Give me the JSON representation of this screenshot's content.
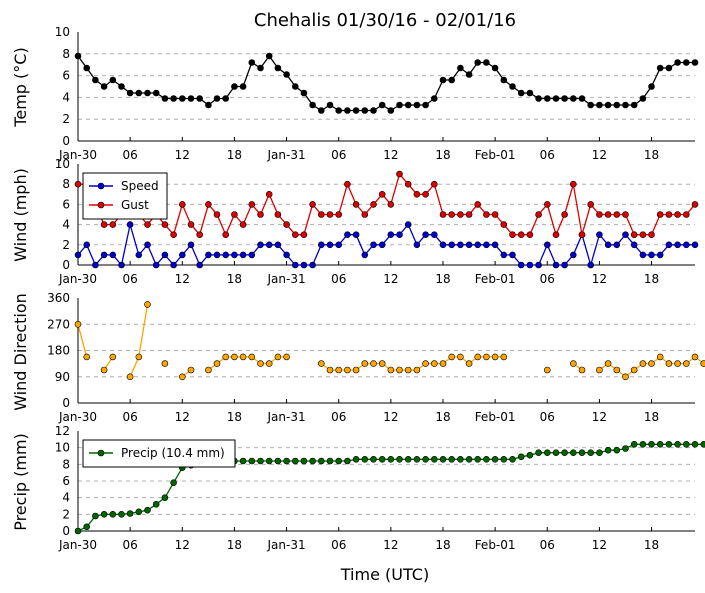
{
  "title": "Chehalis 01/30/16 - 02/01/16",
  "xlabel": "Time (UTC)",
  "x_tick_labels": [
    "Jan-30",
    "06",
    "12",
    "18",
    "Jan-31",
    "06",
    "12",
    "18",
    "Feb-01",
    "06",
    "12",
    "18"
  ],
  "chart_data": [
    {
      "type": "line",
      "ylabel": "Temp (°C)",
      "ylim": [
        0,
        10
      ],
      "yticks": [
        0,
        2,
        4,
        6,
        8,
        10
      ],
      "grid": true,
      "x_unit": "hours since 2016-01-30 00:00 UTC",
      "xlim": [
        0,
        71
      ],
      "series": [
        {
          "color": "#000000",
          "values": [
            7.8,
            6.7,
            5.6,
            5.0,
            5.6,
            5.0,
            4.4,
            4.4,
            4.4,
            4.4,
            3.9,
            3.9,
            3.9,
            3.9,
            3.9,
            3.3,
            3.9,
            3.9,
            5.0,
            5.0,
            7.2,
            6.7,
            7.8,
            6.7,
            6.1,
            5.0,
            4.4,
            3.3,
            2.8,
            3.3,
            2.8,
            2.8,
            2.8,
            2.8,
            2.8,
            3.3,
            2.8,
            3.3,
            3.3,
            3.3,
            3.3,
            3.9,
            5.6,
            5.6,
            6.7,
            6.1,
            7.2,
            7.2,
            6.7,
            5.6,
            5.0,
            4.4,
            4.4,
            3.9,
            3.9,
            3.9,
            3.9,
            3.9,
            3.9,
            3.3,
            3.3,
            3.3,
            3.3,
            3.3,
            3.3,
            3.9,
            5.0,
            6.7,
            6.7,
            7.2,
            7.2,
            7.2
          ]
        }
      ]
    },
    {
      "type": "line",
      "ylabel": "Wind (mph)",
      "ylim": [
        0,
        10
      ],
      "yticks": [
        0,
        2,
        4,
        6,
        8,
        10
      ],
      "grid": true,
      "legend": "top-left",
      "series": [
        {
          "name": "Speed",
          "color": "#0000cc",
          "values": [
            1,
            2,
            0,
            1,
            1,
            0,
            4,
            1,
            2,
            0,
            1,
            0,
            1,
            2,
            0,
            1,
            1,
            1,
            1,
            1,
            1,
            2,
            2,
            2,
            1,
            0,
            0,
            0,
            2,
            2,
            2,
            3,
            3,
            1,
            2,
            2,
            3,
            3,
            4,
            2,
            3,
            3,
            2,
            2,
            2,
            2,
            2,
            2,
            2,
            1,
            1,
            0,
            0,
            0,
            2,
            0,
            0,
            1,
            3,
            0,
            3,
            2,
            2,
            3,
            2,
            1,
            1,
            1,
            2,
            2,
            2,
            2
          ]
        },
        {
          "name": "Gust",
          "color": "#dd0000",
          "values": [
            8,
            8,
            6,
            4,
            4,
            5,
            5,
            5,
            4,
            5,
            4,
            3,
            6,
            4,
            3,
            6,
            5,
            3,
            5,
            4,
            6,
            5,
            7,
            5,
            4,
            3,
            3,
            6,
            5,
            5,
            5,
            8,
            6,
            5,
            6,
            7,
            6,
            9,
            8,
            7,
            7,
            8,
            5,
            5,
            5,
            5,
            6,
            5,
            5,
            4,
            3,
            3,
            3,
            5,
            6,
            3,
            5,
            8,
            3,
            6,
            5,
            5,
            5,
            5,
            3,
            3,
            3,
            5,
            5,
            5,
            5,
            6
          ]
        }
      ]
    },
    {
      "type": "line",
      "ylabel": "Wind Direction",
      "ylim": [
        0,
        360
      ],
      "yticks": [
        0,
        90,
        180,
        270,
        360
      ],
      "grid": true,
      "series": [
        {
          "color": "#ffa500",
          "values": [
            270,
            158,
            null,
            113,
            158,
            null,
            90,
            158,
            338,
            null,
            135,
            null,
            90,
            113,
            null,
            113,
            135,
            158,
            158,
            158,
            158,
            135,
            135,
            158,
            158,
            null,
            null,
            null,
            135,
            113,
            113,
            113,
            113,
            135,
            135,
            135,
            113,
            113,
            113,
            113,
            135,
            135,
            135,
            158,
            158,
            135,
            158,
            158,
            158,
            158,
            null,
            null,
            null,
            null,
            113,
            null,
            null,
            135,
            113,
            null,
            113,
            135,
            113,
            90,
            113,
            135,
            135,
            158,
            135,
            135,
            135,
            158,
            135
          ]
        }
      ]
    },
    {
      "type": "line",
      "ylabel": "Precip (mm)",
      "ylim": [
        0,
        12
      ],
      "yticks": [
        0,
        2,
        4,
        6,
        8,
        10,
        12
      ],
      "grid": true,
      "legend": "top-left",
      "series": [
        {
          "name": "Precip (10.4 mm)",
          "color": "#006400",
          "values": [
            0,
            0.5,
            1.8,
            2.0,
            2.0,
            2.0,
            2.1,
            2.3,
            2.5,
            3.2,
            4.0,
            5.8,
            7.6,
            7.9,
            8.1,
            8.1,
            8.1,
            8.4,
            8.4,
            8.4,
            8.4,
            8.4,
            8.4,
            8.4,
            8.4,
            8.4,
            8.4,
            8.4,
            8.4,
            8.4,
            8.4,
            8.4,
            8.6,
            8.6,
            8.6,
            8.6,
            8.6,
            8.6,
            8.6,
            8.6,
            8.6,
            8.6,
            8.6,
            8.6,
            8.6,
            8.6,
            8.6,
            8.6,
            8.6,
            8.6,
            8.6,
            8.9,
            9.1,
            9.4,
            9.4,
            9.4,
            9.4,
            9.4,
            9.4,
            9.4,
            9.4,
            9.7,
            9.7,
            9.9,
            10.4,
            10.4,
            10.4,
            10.4,
            10.4,
            10.4,
            10.4,
            10.4,
            10.4
          ]
        }
      ]
    }
  ]
}
